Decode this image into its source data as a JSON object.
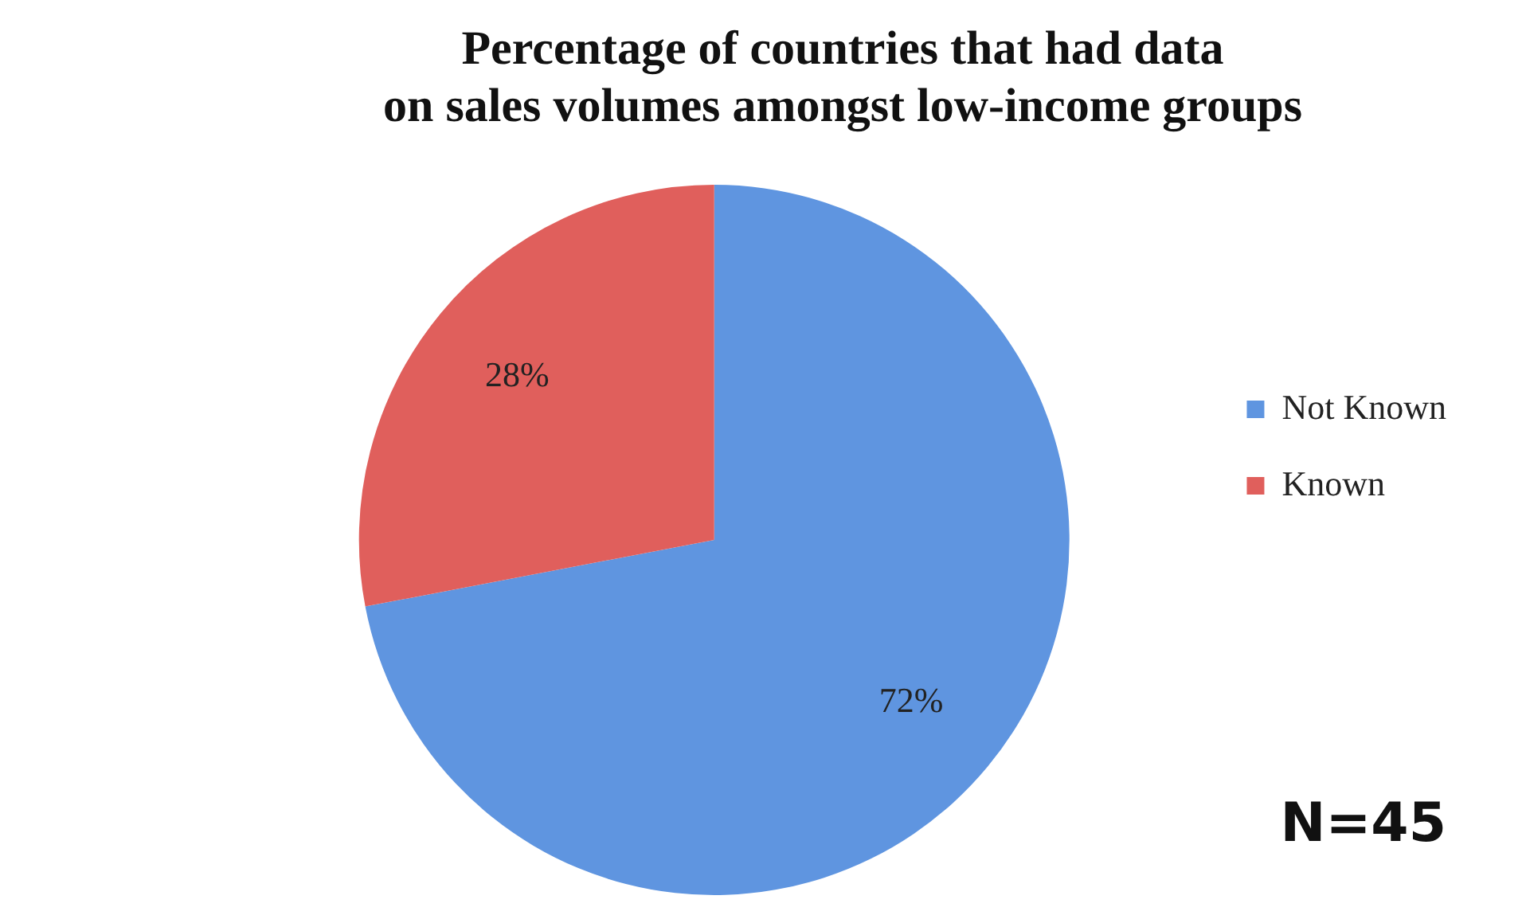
{
  "chart_data": {
    "type": "pie",
    "title": "Percentage of countries that had data\non sales volumes amongst low-income groups",
    "categories": [
      "Not Known",
      "Known"
    ],
    "values": [
      72,
      28
    ],
    "colors": [
      "#5f95e0",
      "#e05f5c"
    ],
    "value_labels": [
      "72%",
      "28%"
    ],
    "legend": "right",
    "annotations": [
      "N=45"
    ]
  }
}
